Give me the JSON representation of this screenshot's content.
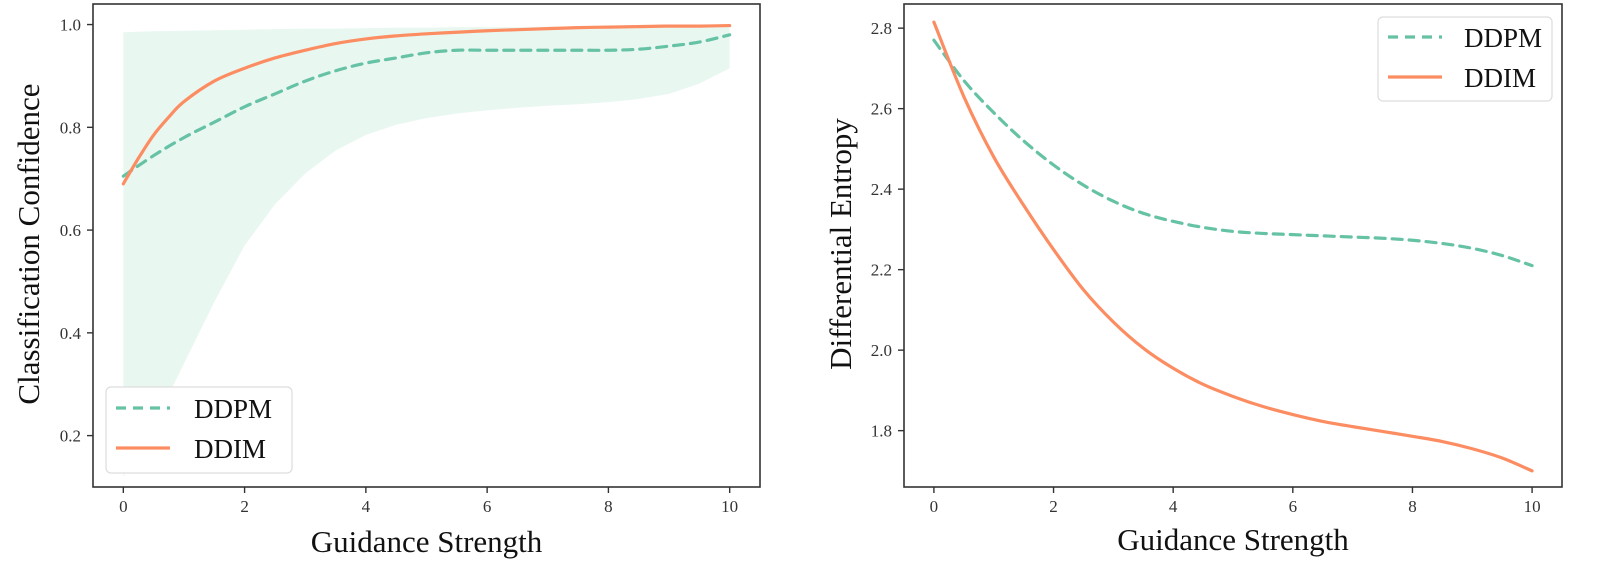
{
  "colors": {
    "ddpm": "#66c2a5",
    "ddim": "#fc8d62",
    "band": "#e9f7f1"
  },
  "chart_data": [
    {
      "type": "line",
      "xlabel": "Guidance Strength",
      "ylabel": "Classification Confidence",
      "xlim": [
        -0.5,
        10.5
      ],
      "ylim": [
        0.1,
        1.04
      ],
      "xticks": [
        0,
        2,
        4,
        6,
        8,
        10
      ],
      "yticks": [
        0.2,
        0.4,
        0.6,
        0.8,
        1.0
      ],
      "xtick_labels": [
        "0",
        "2",
        "4",
        "6",
        "8",
        "10"
      ],
      "ytick_labels": [
        "0.2",
        "0.4",
        "0.6",
        "0.8",
        "1.0"
      ],
      "legend_position": "lower-left",
      "band": {
        "x": [
          0,
          0.5,
          1,
          1.5,
          2,
          2.5,
          3,
          3.5,
          4,
          4.5,
          5,
          5.5,
          6,
          6.5,
          7,
          7.5,
          8,
          8.5,
          9,
          9.5,
          10
        ],
        "upper": [
          0.985,
          0.987,
          0.988,
          0.989,
          0.99,
          0.991,
          0.992,
          0.992,
          0.993,
          0.994,
          0.994,
          0.995,
          0.995,
          0.995,
          0.996,
          0.996,
          0.996,
          0.997,
          0.997,
          0.997,
          0.998
        ],
        "lower": [
          0.12,
          0.22,
          0.34,
          0.46,
          0.57,
          0.65,
          0.71,
          0.755,
          0.785,
          0.805,
          0.818,
          0.827,
          0.833,
          0.838,
          0.842,
          0.845,
          0.849,
          0.855,
          0.865,
          0.885,
          0.915
        ]
      },
      "series": [
        {
          "name": "DDPM",
          "x": [
            0,
            0.5,
            1,
            1.5,
            2,
            2.5,
            3,
            3.5,
            4,
            4.5,
            5,
            5.5,
            6,
            6.5,
            7,
            7.5,
            8,
            8.5,
            9,
            9.5,
            10
          ],
          "values": [
            0.705,
            0.745,
            0.78,
            0.81,
            0.84,
            0.865,
            0.89,
            0.91,
            0.925,
            0.935,
            0.945,
            0.95,
            0.95,
            0.95,
            0.95,
            0.95,
            0.95,
            0.952,
            0.958,
            0.966,
            0.98
          ]
        },
        {
          "name": "DDIM",
          "x": [
            0,
            0.25,
            0.5,
            0.75,
            1,
            1.5,
            2,
            2.5,
            3,
            3.5,
            4,
            4.5,
            5,
            5.5,
            6,
            6.5,
            7,
            7.5,
            8,
            8.5,
            9,
            9.5,
            10
          ],
          "values": [
            0.69,
            0.74,
            0.785,
            0.82,
            0.85,
            0.89,
            0.915,
            0.935,
            0.95,
            0.963,
            0.972,
            0.978,
            0.982,
            0.985,
            0.988,
            0.99,
            0.992,
            0.994,
            0.995,
            0.996,
            0.997,
            0.997,
            0.998
          ]
        }
      ]
    },
    {
      "type": "line",
      "xlabel": "Guidance Strength",
      "ylabel": "Differential Entropy",
      "xlim": [
        -0.5,
        10.5
      ],
      "ylim": [
        1.66,
        2.86
      ],
      "xticks": [
        0,
        2,
        4,
        6,
        8,
        10
      ],
      "yticks": [
        1.8,
        2.0,
        2.2,
        2.4,
        2.6,
        2.8
      ],
      "xtick_labels": [
        "0",
        "2",
        "4",
        "6",
        "8",
        "10"
      ],
      "ytick_labels": [
        "1.8",
        "2.0",
        "2.2",
        "2.4",
        "2.6",
        "2.8"
      ],
      "legend_position": "top-right",
      "series": [
        {
          "name": "DDPM",
          "x": [
            0,
            0.5,
            1,
            1.5,
            2,
            2.5,
            3,
            3.5,
            4,
            4.5,
            5,
            5.5,
            6,
            6.5,
            7,
            7.5,
            8,
            8.5,
            9,
            9.5,
            10
          ],
          "values": [
            2.77,
            2.67,
            2.59,
            2.52,
            2.46,
            2.41,
            2.37,
            2.34,
            2.32,
            2.305,
            2.295,
            2.29,
            2.287,
            2.284,
            2.281,
            2.278,
            2.273,
            2.265,
            2.253,
            2.235,
            2.21
          ]
        },
        {
          "name": "DDIM",
          "x": [
            0,
            0.5,
            1,
            1.5,
            2,
            2.5,
            3,
            3.5,
            4,
            4.5,
            5,
            5.5,
            6,
            6.5,
            7,
            7.5,
            8,
            8.5,
            9,
            9.5,
            10
          ],
          "values": [
            2.815,
            2.63,
            2.48,
            2.36,
            2.25,
            2.15,
            2.07,
            2.005,
            1.955,
            1.915,
            1.885,
            1.86,
            1.84,
            1.823,
            1.81,
            1.798,
            1.786,
            1.773,
            1.755,
            1.732,
            1.7
          ]
        }
      ]
    }
  ]
}
